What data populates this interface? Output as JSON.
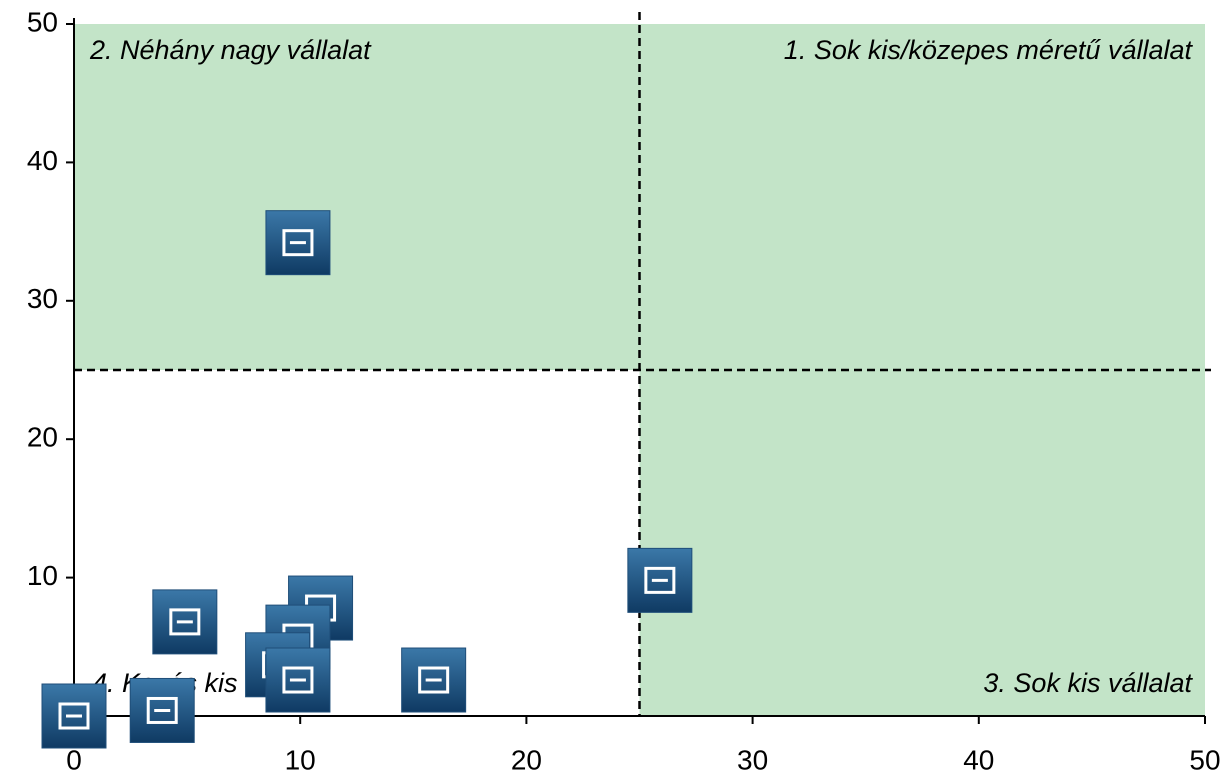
{
  "chart_data": {
    "type": "scatter",
    "x": [
      9.9,
      25.9,
      4.9,
      10.9,
      9.9,
      9.0,
      9.9,
      15.9,
      3.9,
      0
    ],
    "y": [
      34.2,
      9.8,
      6.8,
      7.8,
      5.7,
      3.7,
      2.6,
      2.6,
      0.4,
      0
    ],
    "color": "#1f4e79",
    "xlim": [
      0,
      50
    ],
    "ylim": [
      0,
      50
    ],
    "xticks": [
      0,
      10,
      20,
      30,
      40,
      50
    ],
    "yticks": [
      0,
      10,
      20,
      30,
      40,
      50
    ],
    "divider": {
      "x": 25,
      "y": 25
    },
    "shading_color": "#c3e4c8",
    "annotations": [
      "1. Sok kis/közepes méretű vállalat",
      "2. Néhány nagy vállalat",
      "3. Sok kis vállalat",
      "4. Kevés kis vállalat"
    ]
  }
}
